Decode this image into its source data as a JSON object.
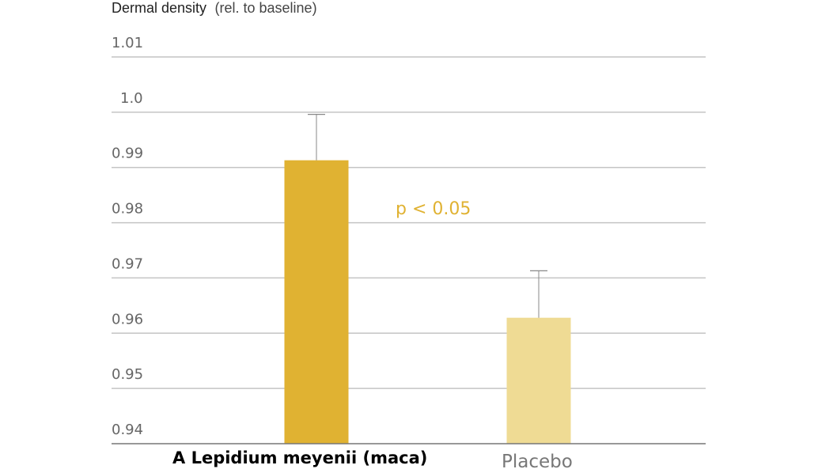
{
  "chart_data": {
    "type": "bar",
    "ylabel_main": "Dermal density",
    "ylabel_unit": "(rel. to baseline)",
    "ylim": [
      0.94,
      1.01
    ],
    "y_ticks": [
      {
        "value": 0.94,
        "label": "0.94"
      },
      {
        "value": 0.95,
        "label": "0.95"
      },
      {
        "value": 0.96,
        "label": "0.96"
      },
      {
        "value": 0.97,
        "label": "0.97"
      },
      {
        "value": 0.98,
        "label": "0.98"
      },
      {
        "value": 0.99,
        "label": "0.99"
      },
      {
        "value": 1.0,
        "label": "1.0"
      },
      {
        "value": 1.01,
        "label": "1.01"
      }
    ],
    "grid": true,
    "categories": [
      "A Lepidium meyenii (maca)",
      "Placebo"
    ],
    "values": [
      0.9913,
      0.9628
    ],
    "error_upper": [
      0.9996,
      0.9713
    ],
    "colors": [
      "#e0b232",
      "#efdb94"
    ],
    "annotation": {
      "text": "p < 0.05",
      "color": "#e0b232"
    }
  }
}
